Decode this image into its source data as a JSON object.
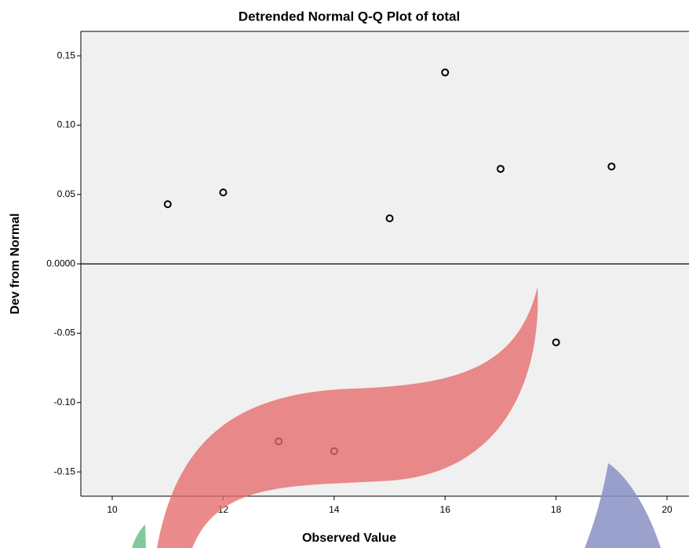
{
  "chart_data": {
    "type": "scatter",
    "title": "Detrended Normal Q-Q Plot of total",
    "x_label": "Observed Value",
    "y_label": "Dev from Normal",
    "x": [
      11,
      12,
      13,
      14,
      15,
      16,
      17,
      18,
      19
    ],
    "values": [
      0.043,
      0.0515,
      -0.128,
      -0.135,
      0.0328,
      0.138,
      0.0685,
      -0.0566,
      0.0702
    ],
    "color": "#000000",
    "xlim": [
      9.434,
      20.396
    ],
    "ylim": [
      -0.1675,
      0.1676
    ],
    "xticks": [
      10,
      12,
      14,
      16,
      18,
      20
    ],
    "yticks": [
      0.15,
      {
        "value": 0.1,
        "label": "0.10"
      },
      0.05,
      {
        "value": 0,
        "label": "0.0000"
      },
      -0.05,
      {
        "value": -0.1,
        "label": "-0.10"
      },
      -0.15
    ],
    "reference_line": 0
  }
}
